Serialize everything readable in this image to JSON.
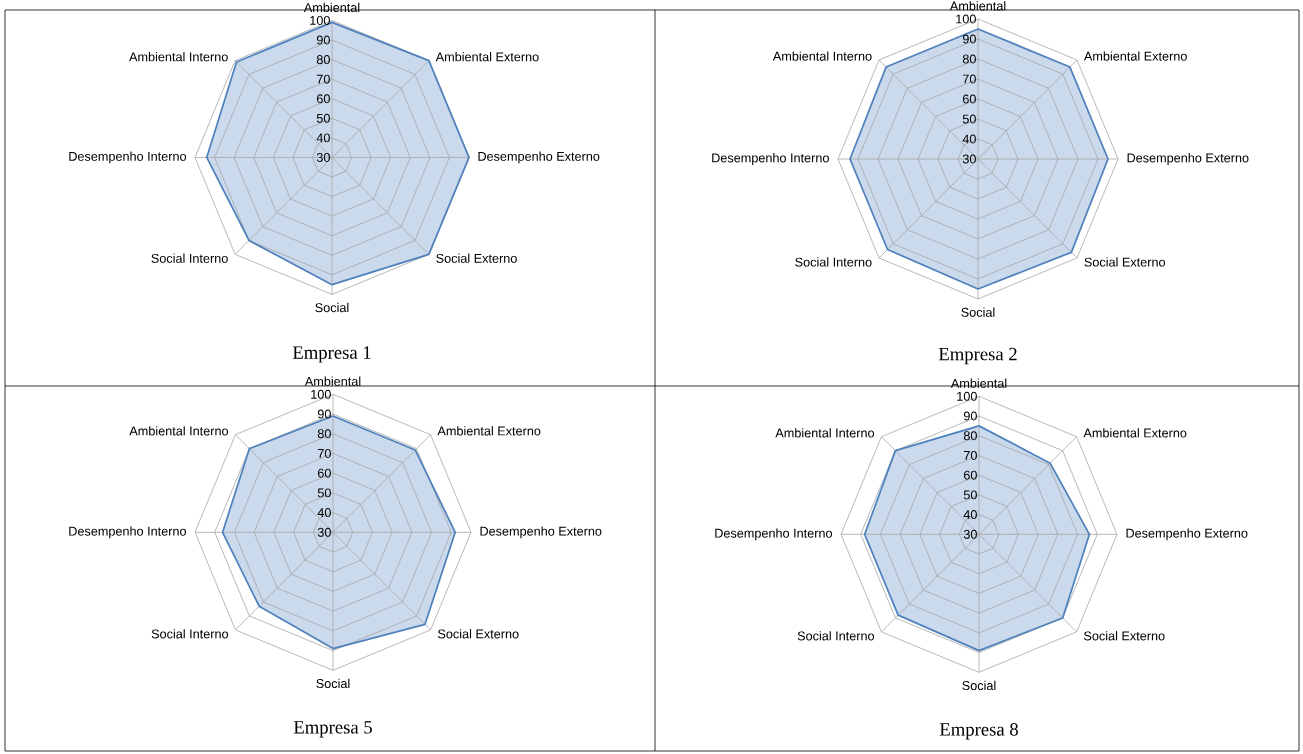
{
  "chart_data": [
    {
      "type": "radar",
      "title": "Empresa 1",
      "categories": [
        "Ambiental",
        "Ambiental Externo",
        "Desempenho Externo",
        "Social Externo",
        "Social",
        "Social Interno",
        "Desempenho Interno",
        "Ambiental Interno"
      ],
      "series": [
        {
          "color": "#4f81bd",
          "values": [
            99,
            100,
            100,
            100,
            95,
            90,
            94,
            99
          ]
        }
      ],
      "ylim": [
        30,
        100
      ],
      "yticks": [
        30,
        40,
        50,
        60,
        70,
        80,
        90,
        100
      ],
      "grid": true
    },
    {
      "type": "radar",
      "title": "Empresa 2",
      "categories": [
        "Ambiental",
        "Ambiental Externo",
        "Desempenho Externo",
        "Social Externo",
        "Social",
        "Social Interno",
        "Desempenho Interno",
        "Ambiental Interno"
      ],
      "series": [
        {
          "color": "#4f81bd",
          "values": [
            95,
            95,
            95,
            96,
            95,
            94,
            94,
            95
          ]
        }
      ],
      "ylim": [
        30,
        100
      ],
      "yticks": [
        30,
        40,
        50,
        60,
        70,
        80,
        90,
        100
      ],
      "grid": true
    },
    {
      "type": "radar",
      "title": "Empresa 5",
      "categories": [
        "Ambiental",
        "Ambiental Externo",
        "Desempenho Externo",
        "Social Externo",
        "Social",
        "Social Interno",
        "Desempenho Interno",
        "Ambiental Interno"
      ],
      "series": [
        {
          "color": "#4f81bd",
          "values": [
            89,
            89,
            92,
            96,
            89,
            83,
            86,
            90
          ]
        }
      ],
      "ylim": [
        30,
        100
      ],
      "yticks": [
        30,
        40,
        50,
        60,
        70,
        80,
        90,
        100
      ],
      "grid": true
    },
    {
      "type": "radar",
      "title": "Empresa 8",
      "categories": [
        "Ambiental",
        "Ambiental Externo",
        "Desempenho Externo",
        "Social Externo",
        "Social",
        "Social Interno",
        "Desempenho Interno",
        "Ambiental Interno"
      ],
      "series": [
        {
          "color": "#4f81bd",
          "values": [
            85,
            81,
            86,
            90,
            89,
            88,
            88,
            90
          ]
        }
      ],
      "ylim": [
        30,
        100
      ],
      "yticks": [
        30,
        40,
        50,
        60,
        70,
        80,
        90,
        100
      ],
      "grid": true
    }
  ]
}
